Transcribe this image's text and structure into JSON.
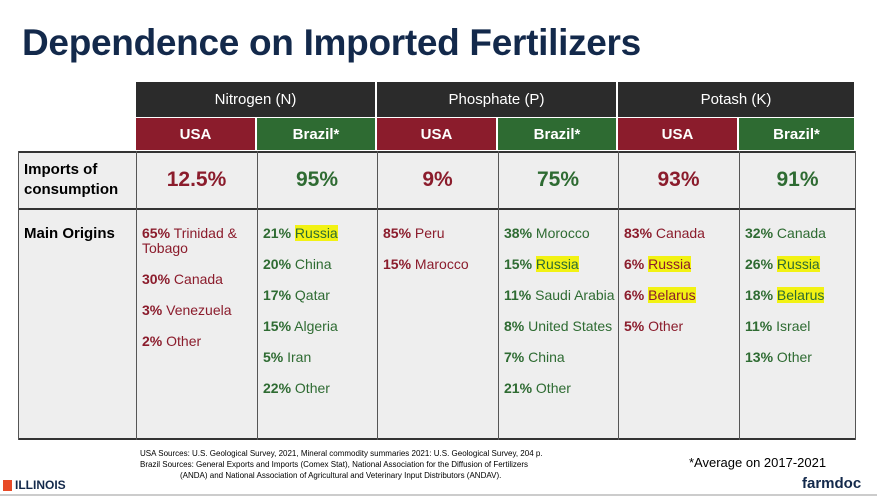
{
  "title": "Dependence on Imported Fertilizers",
  "nutrients": [
    "Nitrogen (N)",
    "Phosphate (P)",
    "Potash (K)"
  ],
  "countries": [
    "USA",
    "Brazil*",
    "USA",
    "Brazil*",
    "USA",
    "Brazil*"
  ],
  "row_labels": {
    "imports": "Imports of consumption",
    "imports_line1": "Imports of",
    "imports_line2": "consumption",
    "origins": "Main Origins"
  },
  "imports": [
    "12.5%",
    "95%",
    "9%",
    "75%",
    "93%",
    "91%"
  ],
  "origins": [
    [
      {
        "pct": "65%",
        "name": "Trinidad & Tobago",
        "highlight": false
      },
      {
        "pct": "30%",
        "name": "Canada",
        "highlight": false
      },
      {
        "pct": "3%",
        "name": "Venezuela",
        "highlight": false
      },
      {
        "pct": "2%",
        "name": "Other",
        "highlight": false
      }
    ],
    [
      {
        "pct": "21%",
        "name": "Russia",
        "highlight": true
      },
      {
        "pct": "20%",
        "name": "China",
        "highlight": false
      },
      {
        "pct": "17%",
        "name": "Qatar",
        "highlight": false
      },
      {
        "pct": "15%",
        "name": "Algeria",
        "highlight": false
      },
      {
        "pct": "5%",
        "name": "Iran",
        "highlight": false
      },
      {
        "pct": "22%",
        "name": "Other",
        "highlight": false
      }
    ],
    [
      {
        "pct": "85%",
        "name": "Peru",
        "highlight": false
      },
      {
        "pct": "15%",
        "name": "Marocco",
        "highlight": false
      }
    ],
    [
      {
        "pct": "38%",
        "name": "Morocco",
        "highlight": false
      },
      {
        "pct": "15%",
        "name": "Russia",
        "highlight": true
      },
      {
        "pct": "11%",
        "name": "Saudi Arabia",
        "highlight": false
      },
      {
        "pct": "8%",
        "name": "United States",
        "highlight": false
      },
      {
        "pct": "7%",
        "name": "China",
        "highlight": false
      },
      {
        "pct": "21%",
        "name": "Other",
        "highlight": false
      }
    ],
    [
      {
        "pct": "83%",
        "name": "Canada",
        "highlight": false
      },
      {
        "pct": "6%",
        "name": "Russia",
        "highlight": true
      },
      {
        "pct": "6%",
        "name": "Belarus",
        "highlight": true
      },
      {
        "pct": "5%",
        "name": "Other",
        "highlight": false
      }
    ],
    [
      {
        "pct": "32%",
        "name": "Canada",
        "highlight": false
      },
      {
        "pct": "26%",
        "name": "Russia",
        "highlight": true
      },
      {
        "pct": "18%",
        "name": "Belarus",
        "highlight": true
      },
      {
        "pct": "11%",
        "name": "Israel",
        "highlight": false
      },
      {
        "pct": "13%",
        "name": "Other",
        "highlight": false
      }
    ]
  ],
  "sources": {
    "usa": "USA Sources: U.S. Geological Survey, 2021, Mineral commodity summaries 2021: U.S. Geological Survey, 204 p.",
    "brazil_line1": "Brazil Sources: General Exports and Imports (Comex Stat), National Association for the Diffusion of Fertilizers",
    "brazil_line2": "(ANDA) and National Association of Agricultural and Veterinary Input Distributors (ANDAV)."
  },
  "footnote": "*Average on 2017-2021",
  "logos": {
    "left": "ILLINOIS",
    "right": "farmdoc"
  },
  "colors": {
    "title": "#13294b",
    "usa": "#8b1c2c",
    "brazil": "#2e6b32",
    "header": "#2b2b2b",
    "highlight": "#f2f213"
  }
}
